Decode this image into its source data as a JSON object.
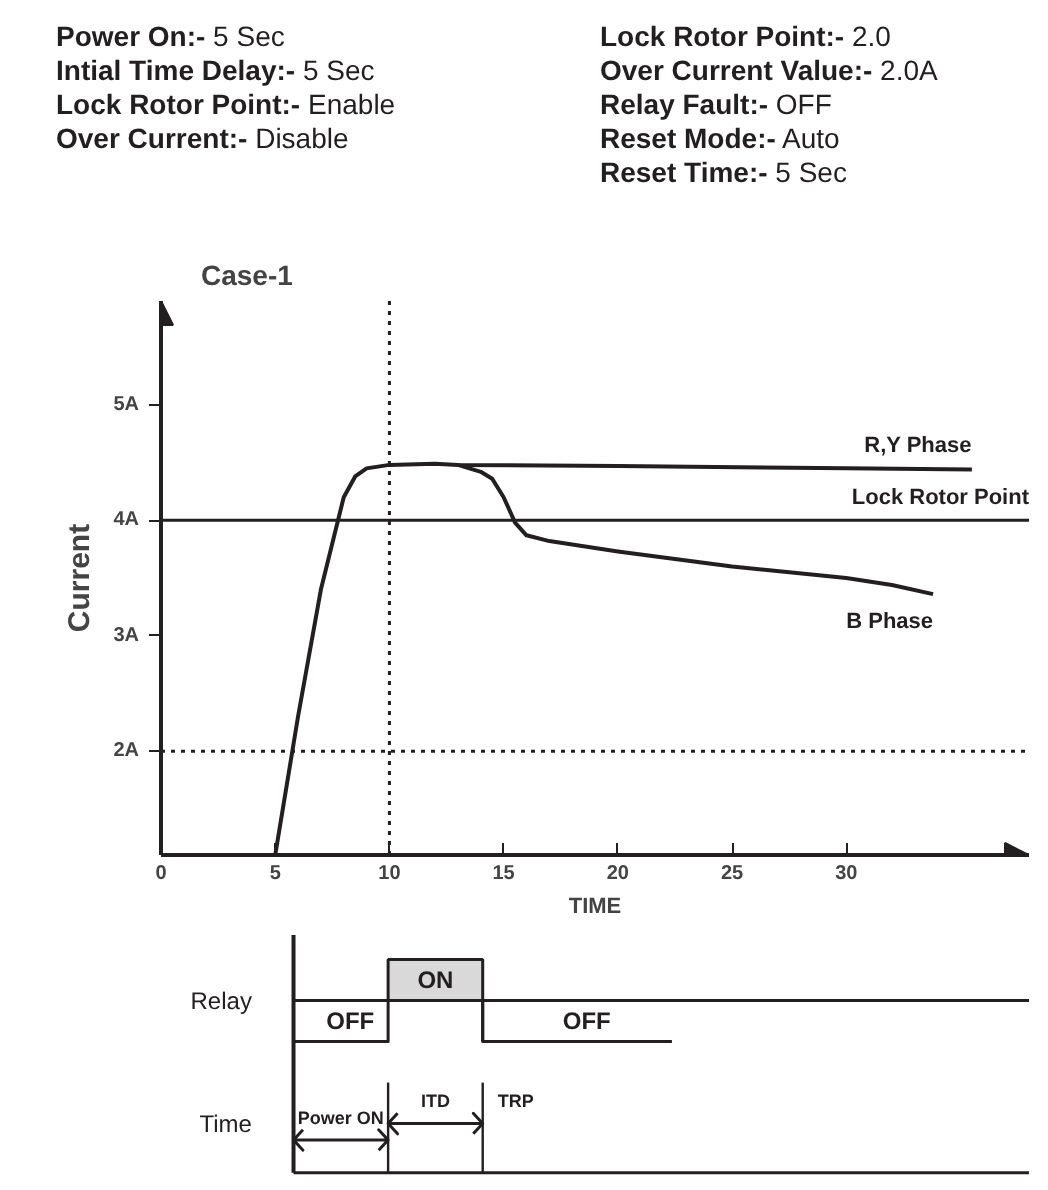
{
  "chart_data": [
    {
      "type": "line",
      "title": "Case-1",
      "xlabel": "TIME",
      "ylabel": "Current",
      "annotations": [
        "Power On:- 5 Sec",
        "Intial Time Delay:- 5 Sec",
        "Lock Rotor Point:- Enable",
        "Over Current:- Disable",
        "Lock Rotor Point:- 2.0",
        "Over Current Value:- 2.0A",
        "Relay Fault:- OFF",
        "Reset Mode:- Auto",
        "Reset Time:- 5 Sec"
      ],
      "xlim": [
        0,
        38
      ],
      "ylim": [
        1.1,
        5.9
      ],
      "xticks": [
        0,
        5,
        10,
        15,
        20,
        25,
        30
      ],
      "yticks": [
        {
          "value": 2,
          "label": "2A"
        },
        {
          "value": 3,
          "label": "3A"
        },
        {
          "value": 4,
          "label": "4A"
        },
        {
          "value": 5,
          "label": "5A"
        }
      ],
      "series": [
        {
          "name": "R,Y Phase",
          "color": "#231f20",
          "x": [
            5,
            6,
            7,
            8,
            8.5,
            9,
            10,
            12,
            13,
            20,
            30,
            35.5
          ],
          "values": [
            1.1,
            2.3,
            3.4,
            4.2,
            4.38,
            4.45,
            4.48,
            4.49,
            4.48,
            4.47,
            4.45,
            4.44
          ]
        },
        {
          "name": "B Phase",
          "color": "#231f20",
          "x": [
            13,
            14,
            14.5,
            15,
            15.5,
            16,
            17,
            20,
            25,
            30,
            32,
            33.8
          ],
          "values": [
            4.48,
            4.42,
            4.36,
            4.2,
            3.98,
            3.87,
            3.82,
            3.73,
            3.6,
            3.5,
            3.44,
            3.36
          ]
        }
      ],
      "ref_lines": [
        {
          "axis": "y",
          "value": 4,
          "label": "Lock Rotor Point",
          "line_style": "solid"
        },
        {
          "axis": "y",
          "value": 2,
          "line_style": "dotted"
        },
        {
          "axis": "x",
          "value": 10,
          "line_style": "dotted"
        }
      ],
      "grid": false,
      "marker": "none",
      "line_style": "solid"
    },
    {
      "type": "other",
      "annotations": [
        "Relay",
        "Time",
        "ON",
        "OFF",
        "OFF",
        "Power ON",
        "ITD",
        "TRP"
      ]
    }
  ]
}
